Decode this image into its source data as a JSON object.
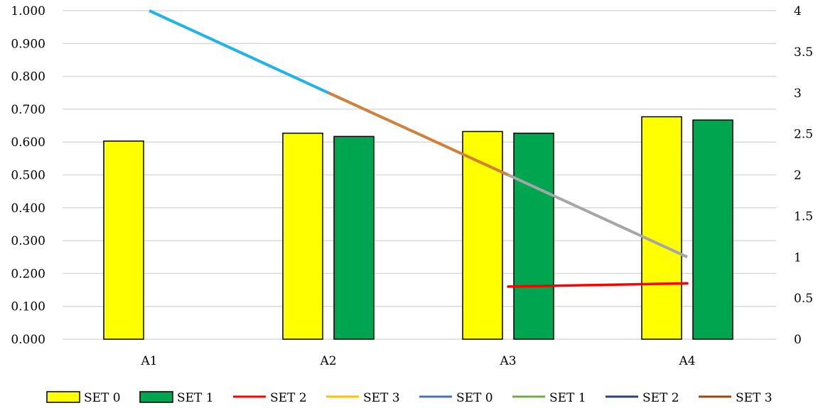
{
  "chart_data": {
    "type": "bar",
    "categories": [
      "A1",
      "A2",
      "A3",
      "A4"
    ],
    "bar_series": [
      {
        "name": "SET 0",
        "color": "#ffff00",
        "values": [
          0.603,
          0.627,
          0.632,
          0.677
        ]
      },
      {
        "name": "SET 1",
        "color": "#00a550",
        "values": [
          null,
          0.617,
          0.627,
          0.667
        ]
      }
    ],
    "line_series": [
      {
        "name": "SET 2",
        "color": "#ff0000",
        "axis": "right",
        "values": [
          null,
          null,
          0.64,
          0.68
        ]
      },
      {
        "name": "SET 3",
        "color": "#ffc000",
        "axis": "right",
        "values": [
          null,
          null,
          null,
          null
        ]
      },
      {
        "name": "SET 0",
        "color": "#4472c4",
        "axis": "right",
        "values": [
          null,
          null,
          null,
          null
        ]
      },
      {
        "name": "SET 1",
        "color": "#70ad47",
        "axis": "right",
        "values": [
          null,
          null,
          null,
          null
        ]
      },
      {
        "name": "SET 2",
        "color": "#264478",
        "axis": "right",
        "values": [
          null,
          null,
          null,
          null
        ]
      },
      {
        "name": "SET 3",
        "color": "#9e480e",
        "axis": "right",
        "values": [
          null,
          null,
          null,
          null
        ]
      }
    ],
    "segments": [
      {
        "color": "#1fb4e8",
        "axis": "right",
        "from": {
          "category": "A1",
          "value": 4.0
        },
        "to": {
          "category": "A2",
          "value": 3.0
        }
      },
      {
        "color": "#d0803a",
        "axis": "right",
        "from": {
          "category": "A2",
          "value": 3.0
        },
        "to": {
          "category": "A3",
          "value": 2.0
        }
      },
      {
        "color": "#a6a6a6",
        "axis": "right",
        "from": {
          "category": "A3",
          "value": 2.0
        },
        "to": {
          "category": "A4",
          "value": 1.0
        }
      }
    ],
    "left_axis": {
      "min": 0,
      "max": 1,
      "ticks": [
        "0.000",
        "0.100",
        "0.200",
        "0.300",
        "0.400",
        "0.500",
        "0.600",
        "0.700",
        "0.800",
        "0.900",
        "1.000"
      ]
    },
    "right_axis": {
      "min": 0,
      "max": 4,
      "ticks": [
        "0",
        "0.5",
        "1",
        "1.5",
        "2",
        "2.5",
        "3",
        "3.5",
        "4"
      ]
    },
    "grid": true,
    "legend_position": "bottom",
    "legend": [
      {
        "label": "SET 0",
        "kind": "bar",
        "color": "#ffff00"
      },
      {
        "label": "SET 1",
        "kind": "bar",
        "color": "#00a550"
      },
      {
        "label": "SET 2",
        "kind": "line",
        "color": "#ff0000"
      },
      {
        "label": "SET 3",
        "kind": "line",
        "color": "#ffc000"
      },
      {
        "label": "SET 0",
        "kind": "line",
        "color": "#4472c4"
      },
      {
        "label": "SET 1",
        "kind": "line",
        "color": "#70ad47"
      },
      {
        "label": "SET 2",
        "kind": "line",
        "color": "#264478"
      },
      {
        "label": "SET 3",
        "kind": "line",
        "color": "#9e480e"
      }
    ]
  }
}
